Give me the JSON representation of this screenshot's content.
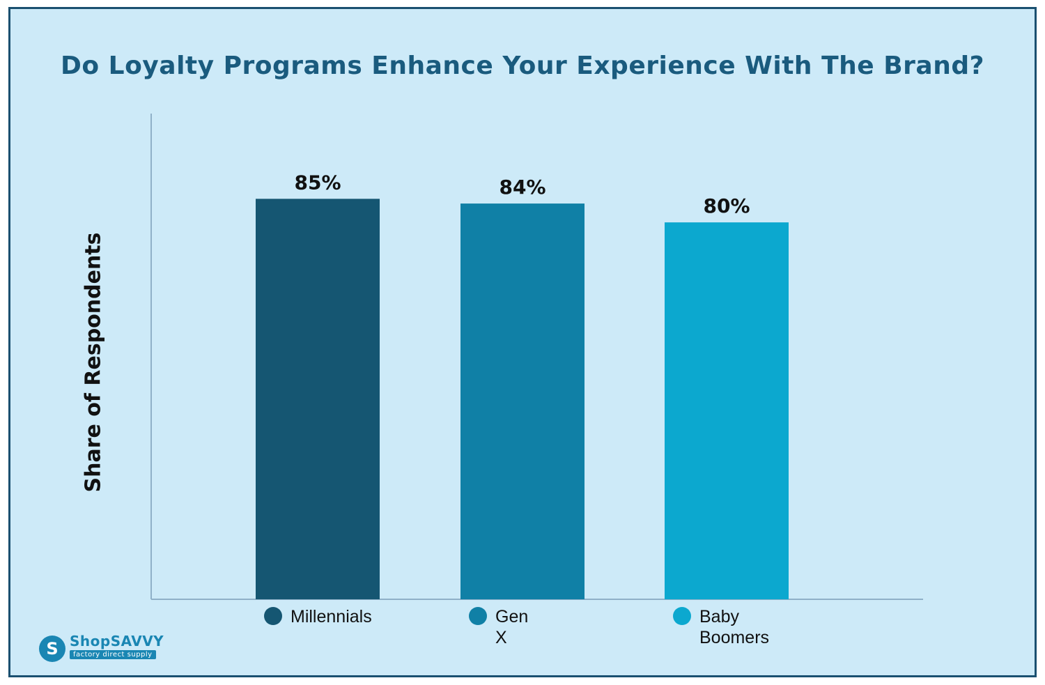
{
  "chart_data": {
    "type": "bar",
    "title": "Do Loyalty Programs Enhance Your Experience With The Brand?",
    "ylabel": "Share of Respondents",
    "categories": [
      "Millennials",
      "Gen X",
      "Baby Boomers"
    ],
    "values": [
      85,
      84,
      80
    ],
    "value_labels": [
      "85%",
      "84%",
      "80%"
    ],
    "colors": [
      "#155672",
      "#1080a6",
      "#0ca8cf"
    ],
    "ylim": [
      0,
      100
    ],
    "grid": false,
    "legend_position": "bottom"
  },
  "colors": {
    "background": "#cdeaf8",
    "border": "#1a5070",
    "title": "#1a5b7e",
    "axis": "#8fb0c8"
  },
  "logo": {
    "name": "ShopSAVVY",
    "tagline": "factory direct supply",
    "icon": "s-badge-icon"
  }
}
